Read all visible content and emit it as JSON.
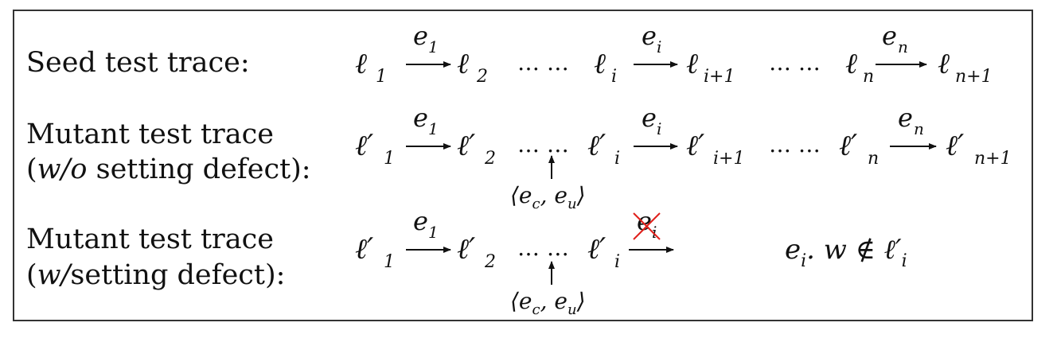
{
  "rows": {
    "seed_label": "Seed test trace:",
    "mutant_wo": {
      "line1": "Mutant test trace",
      "open": "(",
      "abbr": "w/o",
      "rest": " setting defect):"
    },
    "mutant_w": {
      "line1": "Mutant test trace",
      "open": "(",
      "abbr": "w/",
      "rest": "setting defect):"
    }
  },
  "trace": {
    "seed": {
      "l1": "ℓ",
      "l1_sub": "1",
      "e1": "e",
      "e1_sub": "1",
      "l2": "ℓ",
      "l2_sub": "2",
      "dots_a": "… …",
      "li": "ℓ",
      "li_sub": "i",
      "ei": "e",
      "ei_sub": "i",
      "li1": "ℓ",
      "li1_sub": "i+1",
      "dots_b": "… …",
      "ln": "ℓ",
      "ln_sub": "n",
      "en": "e",
      "en_sub": "n",
      "ln1": "ℓ",
      "ln1_sub": "n+1"
    },
    "mutant": {
      "l1": "ℓ′",
      "l1_sub": "1",
      "l2": "ℓ′",
      "l2_sub": "2",
      "li": "ℓ′",
      "li_sub": "i",
      "li1": "ℓ′",
      "li1_sub": "i+1",
      "ln": "ℓ′",
      "ln_sub": "n",
      "ln1": "ℓ′",
      "ln1_sub": "n+1"
    },
    "injection": "⟨e",
    "injection_c": "c",
    "injection_mid": ", e",
    "injection_u": "u",
    "injection_close": "⟩",
    "violation": "e",
    "violation_sub": "i",
    "violation_rest": ". w ∉ ℓ′",
    "violation_rest_sub": "i"
  },
  "colors": {
    "strike": "#e0201b",
    "ink": "#111111",
    "border": "#333333"
  }
}
